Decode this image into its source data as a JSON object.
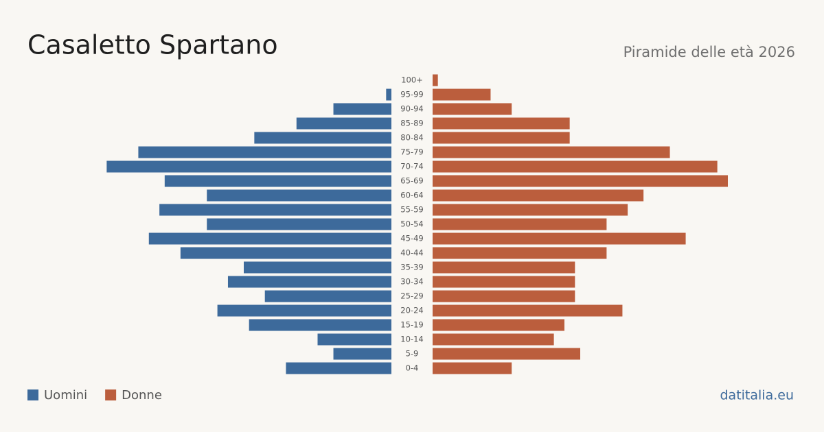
{
  "chart_data": {
    "type": "pyramid",
    "title": "Casaletto Spartano",
    "subtitle": "Piramide delle età 2026",
    "source": "datitalia.eu",
    "categories": [
      "100+",
      "95-99",
      "90-94",
      "85-89",
      "80-84",
      "75-79",
      "70-74",
      "65-69",
      "60-64",
      "55-59",
      "50-54",
      "45-49",
      "40-44",
      "35-39",
      "30-34",
      "25-29",
      "20-24",
      "15-19",
      "10-14",
      "5-9",
      "0-4"
    ],
    "series": [
      {
        "name": "Uomini",
        "color": "#3d6a9b",
        "side": "left",
        "values": [
          0,
          1,
          11,
          18,
          26,
          48,
          54,
          43,
          35,
          44,
          35,
          46,
          40,
          28,
          31,
          24,
          33,
          27,
          14,
          11,
          20
        ]
      },
      {
        "name": "Donne",
        "color": "#bb5e3d",
        "side": "right",
        "values": [
          1,
          11,
          15,
          26,
          26,
          45,
          54,
          56,
          40,
          37,
          33,
          48,
          33,
          27,
          27,
          27,
          36,
          25,
          23,
          28,
          15
        ]
      }
    ]
  }
}
